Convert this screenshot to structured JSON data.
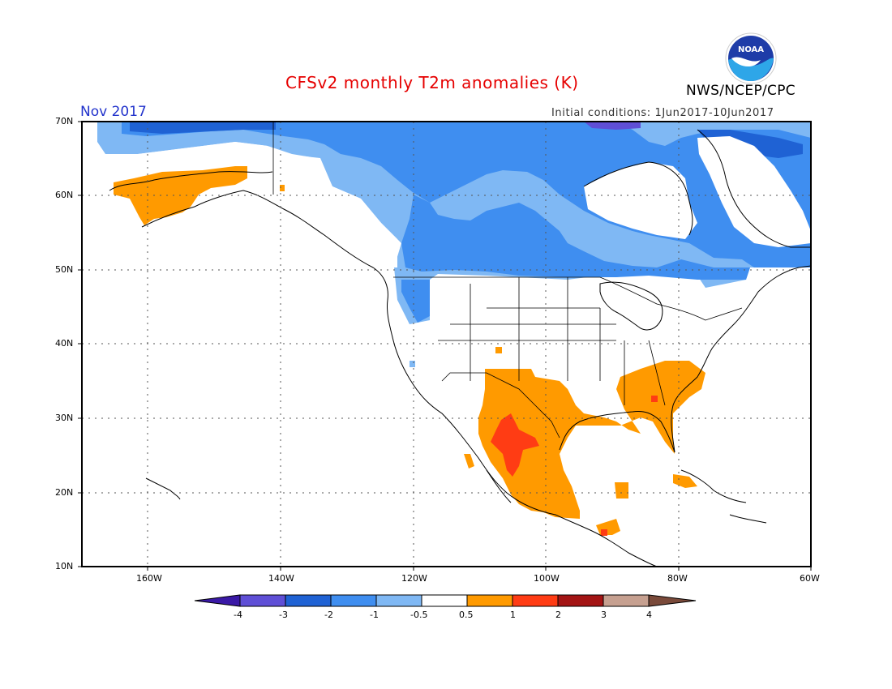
{
  "title": "CFSv2 monthly T2m anomalies (K)",
  "month": "Nov 2017",
  "initial_conditions": "Initial conditions: 1Jun2017-10Jun2017",
  "agency": "NWS/NCEP/CPC",
  "logo_text": "NOAA",
  "map": {
    "region": "North America",
    "lon_range": [
      -170,
      -60
    ],
    "lat_range": [
      10,
      70
    ],
    "lat_ticks": [
      "70N",
      "60N",
      "50N",
      "40N",
      "30N",
      "20N",
      "10N"
    ],
    "lon_ticks": [
      "160W",
      "140W",
      "120W",
      "100W",
      "80W",
      "60W"
    ],
    "gridlines": "dotted"
  },
  "colorbar": {
    "labels": [
      "-4",
      "-3",
      "-2",
      "-1",
      "-0.5",
      "0.5",
      "1",
      "2",
      "3",
      "4"
    ],
    "colors": [
      "#3a19a6",
      "#5f4fd6",
      "#1f62d4",
      "#3f8ef0",
      "#7fb8f4",
      "#ffffff",
      "#ff9a00",
      "#ff3c14",
      "#a31414",
      "#c6a090",
      "#7a4a3a"
    ]
  },
  "anomaly_regions": {
    "cold_moderate": "#3f8ef0",
    "cold_weak": "#7fb8f4",
    "cold_strong": "#5f4fd6",
    "warm_weak": "#ff9a00",
    "warm_moderate": "#ff3c14"
  }
}
